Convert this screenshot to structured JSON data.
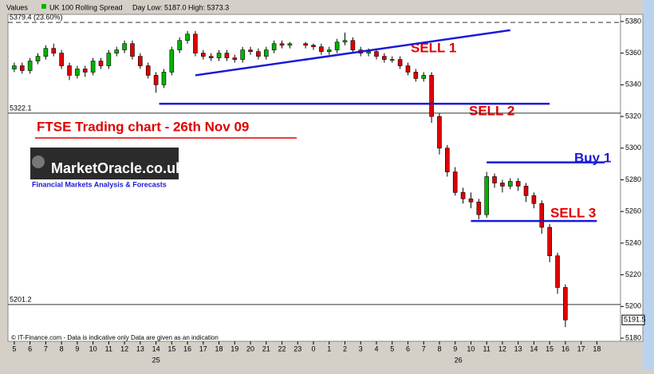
{
  "chart_data": {
    "type": "candlestick",
    "axis_title": "Values",
    "instrument": "UK 100 Rolling Spread",
    "legend_text": "Day Low: 5187.0  High: 5373.3",
    "title": "FTSE Trading chart - 26th Nov 09",
    "logo": "MarketOracle.co.uk",
    "logo_subtitle": "Financial Markets Analysis & Forecasts",
    "footer": "© IT-Finance.com - Data is indicative only Data are given as an indication",
    "last_price": {
      "value": 5191.5,
      "label": "5191.5"
    },
    "levels": [
      {
        "value": 5379.4,
        "label": "5379.4 (23.60%)",
        "style": "dashed"
      },
      {
        "value": 5322.1,
        "label": "5322.1",
        "style": "solid"
      },
      {
        "value": 5201.2,
        "label": "5201.2",
        "style": "solid"
      }
    ],
    "annotations": [
      {
        "text": "SELL 1"
      },
      {
        "text": "SELL 2"
      },
      {
        "text": "Buy 1"
      },
      {
        "text": "SELL 3"
      }
    ],
    "trendlines": [
      {
        "x": [
          11.5,
          31.5
        ],
        "y": [
          5346,
          5374.5
        ]
      },
      {
        "x": [
          9.2,
          34
        ],
        " y": null,
        "y": [
          5328,
          5328
        ]
      },
      {
        "x": [
          30,
          37.5
        ],
        "y": [
          5291,
          5291
        ]
      },
      {
        "x": [
          29,
          37
        ],
        "y": [
          5254,
          5254
        ]
      }
    ],
    "x": [
      0,
      0.5,
      1,
      1.5,
      2,
      2.5,
      3,
      3.5,
      4,
      4.5,
      5,
      5.5,
      6,
      6.5,
      7,
      7.5,
      8,
      8.5,
      9,
      9.5,
      10,
      10.5,
      11,
      11.5,
      12,
      12.5,
      13,
      13.5,
      14,
      14.5,
      15,
      15.5,
      16,
      16.5,
      17,
      17.5,
      18.5,
      19,
      19.5,
      20,
      20.5,
      21,
      21.5,
      22,
      22.5,
      23,
      23.5,
      24,
      24.5,
      25,
      25.5,
      26,
      26.5,
      27,
      27.5,
      28,
      28.5,
      29,
      29.5,
      30,
      30.5,
      31,
      31.5,
      32,
      32.5,
      33,
      33.5,
      34,
      34.5,
      35
    ],
    "open": [
      5350,
      5352,
      5349,
      5355,
      5358,
      5363,
      5360,
      5352,
      5346,
      5350,
      5348,
      5355,
      5352,
      5360,
      5362,
      5366,
      5358,
      5352,
      5346,
      5340,
      5348,
      5362,
      5368,
      5372,
      5360,
      5358,
      5357,
      5360,
      5357,
      5356,
      5362,
      5361,
      5358,
      5362,
      5366,
      5365,
      5366,
      5365,
      5364,
      5361,
      5362,
      5367,
      5368,
      5362,
      5360,
      5361,
      5358,
      5356,
      5356,
      5352,
      5348,
      5344,
      5346,
      5320,
      5300,
      5285,
      5272,
      5268,
      5266,
      5258,
      5282,
      5278,
      5276,
      5279,
      5276,
      5270,
      5265,
      5250,
      5232,
      5212
    ],
    "high": [
      5354,
      5354,
      5357,
      5360,
      5365,
      5366,
      5362,
      5354,
      5352,
      5352,
      5357,
      5357,
      5362,
      5364,
      5368,
      5368,
      5360,
      5354,
      5348,
      5350,
      5364,
      5370,
      5374,
      5374,
      5362,
      5360,
      5362,
      5362,
      5359,
      5364,
      5364,
      5363,
      5364,
      5368,
      5368,
      5367,
      5367,
      5366,
      5366,
      5364,
      5369,
      5373,
      5370,
      5364,
      5363,
      5363,
      5360,
      5358,
      5358,
      5354,
      5350,
      5348,
      5348,
      5322,
      5302,
      5288,
      5275,
      5272,
      5268,
      5285,
      5284,
      5280,
      5281,
      5281,
      5278,
      5272,
      5267,
      5252,
      5234,
      5214
    ],
    "low": [
      5348,
      5347,
      5347,
      5353,
      5356,
      5358,
      5350,
      5343,
      5344,
      5345,
      5346,
      5350,
      5350,
      5358,
      5360,
      5356,
      5350,
      5344,
      5335,
      5338,
      5346,
      5360,
      5366,
      5358,
      5356,
      5355,
      5355,
      5355,
      5354,
      5354,
      5359,
      5356,
      5356,
      5360,
      5363,
      5363,
      5363,
      5362,
      5359,
      5359,
      5360,
      5365,
      5360,
      5358,
      5358,
      5356,
      5354,
      5354,
      5350,
      5346,
      5342,
      5342,
      5316,
      5296,
      5282,
      5270,
      5265,
      5262,
      5255,
      5256,
      5275,
      5272,
      5274,
      5273,
      5266,
      5262,
      5246,
      5228,
      5208,
      5187
    ],
    "close": [
      5352,
      5349,
      5355,
      5358,
      5363,
      5360,
      5352,
      5346,
      5350,
      5348,
      5355,
      5352,
      5360,
      5362,
      5366,
      5358,
      5352,
      5346,
      5340,
      5348,
      5362,
      5368,
      5372,
      5360,
      5358,
      5357,
      5360,
      5357,
      5356,
      5362,
      5361,
      5358,
      5362,
      5366,
      5365,
      5366,
      5365,
      5364,
      5361,
      5362,
      5367,
      5368,
      5362,
      5360,
      5361,
      5358,
      5356,
      5356,
      5352,
      5348,
      5344,
      5346,
      5320,
      5300,
      5285,
      5272,
      5268,
      5266,
      5258,
      5282,
      5278,
      5276,
      5279,
      5276,
      5270,
      5265,
      5250,
      5232,
      5212,
      5191.5
    ],
    "up_color": "#00b400",
    "down_color": "#e00000",
    "line_color": "#1a1ad8",
    "xlim": [
      -0.4,
      38.5
    ],
    "ylim": [
      5178,
      5384.5
    ],
    "yticks": [
      5180,
      5200,
      5220,
      5240,
      5260,
      5280,
      5300,
      5320,
      5340,
      5360,
      5380
    ],
    "xticks": [
      {
        "value": 0,
        "label": "5"
      },
      {
        "value": 1,
        "label": "6"
      },
      {
        "value": 2,
        "label": "7"
      },
      {
        "value": 3,
        "label": "8"
      },
      {
        "value": 4,
        "label": "9"
      },
      {
        "value": 5,
        "label": "10"
      },
      {
        "value": 6,
        "label": "11"
      },
      {
        "value": 7,
        "label": "12"
      },
      {
        "value": 8,
        "label": "13"
      },
      {
        "value": 9,
        "label": "14"
      },
      {
        "value": 10,
        "label": "15"
      },
      {
        "value": 11,
        "label": "16"
      },
      {
        "value": 12,
        "label": "17"
      },
      {
        "value": 13,
        "label": "18"
      },
      {
        "value": 14,
        "label": "19"
      },
      {
        "value": 15,
        "label": "20"
      },
      {
        "value": 16,
        "label": "21"
      },
      {
        "value": 17,
        "label": "22"
      },
      {
        "value": 18,
        "label": "23"
      },
      {
        "value": 19,
        "label": "0"
      },
      {
        "value": 20,
        "label": "1"
      },
      {
        "value": 21,
        "label": "2"
      },
      {
        "value": 22,
        "label": "3"
      },
      {
        "value": 23,
        "label": "4"
      },
      {
        "value": 24,
        "label": "5"
      },
      {
        "value": 25,
        "label": "6"
      },
      {
        "value": 26,
        "label": "7"
      },
      {
        "value": 27,
        "label": "8"
      },
      {
        "value": 28,
        "label": "9"
      },
      {
        "value": 29,
        "label": "10"
      },
      {
        "value": 30,
        "label": "11"
      },
      {
        "value": 31,
        "label": "12"
      },
      {
        "value": 32,
        "label": "13"
      },
      {
        "value": 33,
        "label": "14"
      },
      {
        "value": 34,
        "label": "15"
      },
      {
        "value": 35,
        "label": "16"
      },
      {
        "value": 36,
        "label": "17"
      },
      {
        "value": 37,
        "label": "18"
      }
    ],
    "date_labels": [
      {
        "value": 9,
        "label": "25"
      },
      {
        "value": 28.2,
        "label": "26"
      }
    ]
  }
}
